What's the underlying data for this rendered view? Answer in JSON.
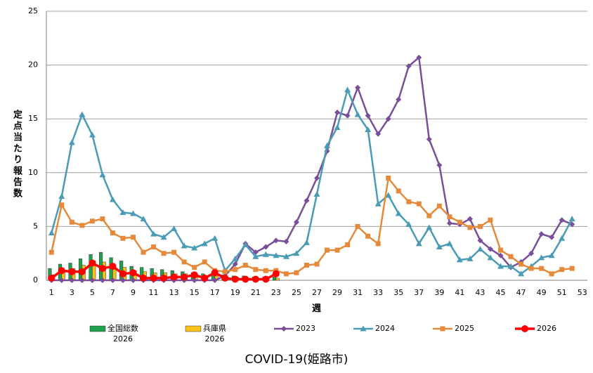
{
  "chart_data": {
    "type": "combo",
    "title": "COVID-19(姫路市)",
    "y_label": "定点当たり報告数",
    "x_label": "週",
    "categories": [
      "1",
      null,
      "3",
      null,
      "5",
      null,
      "7",
      null,
      "9",
      null,
      "11",
      null,
      "13",
      null,
      "15",
      null,
      "17",
      null,
      "19",
      null,
      "21",
      null,
      "23",
      null,
      "25",
      null,
      "27",
      null,
      "29",
      null,
      "31",
      null,
      "33",
      null,
      "35",
      null,
      "37",
      null,
      "39",
      null,
      "41",
      null,
      "43",
      null,
      "45",
      null,
      "47",
      null,
      "49",
      null,
      "51",
      null,
      "53"
    ],
    "ylim": [
      0,
      25
    ],
    "yticks": [
      0,
      5,
      10,
      15,
      20,
      25
    ],
    "grid": true,
    "legend": "bottom",
    "series": [
      {
        "name": "全国総数\n2026",
        "type": "bar",
        "color": "#1ea04c",
        "values": [
          1.1,
          1.5,
          1.6,
          2.0,
          2.4,
          2.6,
          2.1,
          1.8,
          1.3,
          1.2,
          1.1,
          1.0,
          0.9,
          0.8,
          0.7,
          0.6,
          0.6,
          0.5,
          0.4,
          0.4,
          0.3,
          0.3,
          0.3,
          null,
          null,
          null,
          null,
          null,
          null,
          null,
          null,
          null,
          null,
          null,
          null,
          null,
          null,
          null,
          null,
          null,
          null,
          null,
          null,
          null,
          null,
          null,
          null,
          null,
          null,
          null,
          null,
          null,
          null
        ]
      },
      {
        "name": "兵庫県\n2026",
        "type": "bar",
        "color": "#f7c21a",
        "values": [
          0.5,
          0.8,
          1.1,
          1.4,
          1.8,
          1.7,
          1.4,
          1.2,
          0.9,
          0.8,
          0.7,
          0.7,
          0.6,
          0.6,
          0.5,
          0.4,
          0.4,
          0.3,
          0.3,
          0.2,
          0.2,
          0.2,
          0.2,
          null,
          null,
          null,
          null,
          null,
          null,
          null,
          null,
          null,
          null,
          null,
          null,
          null,
          null,
          null,
          null,
          null,
          null,
          null,
          null,
          null,
          null,
          null,
          null,
          null,
          null,
          null,
          null,
          null,
          null
        ]
      },
      {
        "name": "2023",
        "type": "line",
        "marker": "diamond",
        "color": "#7a4e98",
        "values": [
          0,
          0,
          0,
          0,
          0,
          0,
          0,
          0,
          0,
          0,
          0,
          0,
          0,
          0,
          0,
          0,
          0,
          0.4,
          1.5,
          3.4,
          2.6,
          3.1,
          3.7,
          3.6,
          5.4,
          7.4,
          9.5,
          12,
          15.6,
          15.3,
          17.9,
          15.3,
          13.6,
          15,
          16.8,
          19.9,
          20.7,
          13.1,
          10.7,
          5.3,
          5.2,
          5.7,
          3.7,
          2.9,
          2.3,
          1.2,
          1.7,
          2.5,
          4.3,
          4.0,
          5.6,
          5.2,
          null
        ]
      },
      {
        "name": "2024",
        "type": "line",
        "marker": "triangle",
        "color": "#4a9bb6",
        "values": [
          4.4,
          7.8,
          12.8,
          15.4,
          13.5,
          9.8,
          7.5,
          6.3,
          6.2,
          5.7,
          4.3,
          4.0,
          4.8,
          3.2,
          3.0,
          3.4,
          3.9,
          0.9,
          2.0,
          3.3,
          2.2,
          2.4,
          2.3,
          2.2,
          2.5,
          3.5,
          8.0,
          12.5,
          14.2,
          17.7,
          15.4,
          14.0,
          7.1,
          7.9,
          6.2,
          5.2,
          3.4,
          4.9,
          3.1,
          3.4,
          1.9,
          2.0,
          2.9,
          2.1,
          1.3,
          1.3,
          0.6,
          1.3,
          2.1,
          2.3,
          3.9,
          5.7,
          null
        ]
      },
      {
        "name": "2025",
        "type": "line",
        "marker": "square",
        "color": "#e58a3a",
        "values": [
          2.6,
          7.0,
          5.4,
          5.1,
          5.5,
          5.7,
          4.4,
          3.9,
          4.0,
          2.6,
          3.1,
          2.5,
          2.6,
          1.7,
          1.2,
          1.7,
          0.9,
          0.8,
          1.0,
          1.4,
          1.0,
          0.9,
          0.9,
          0.6,
          0.7,
          1.4,
          1.5,
          2.8,
          2.8,
          3.3,
          5.0,
          4.1,
          3.4,
          9.5,
          8.3,
          7.3,
          7.1,
          6.0,
          6.9,
          5.9,
          5.4,
          4.9,
          5.0,
          5.6,
          2.8,
          2.2,
          1.5,
          1.1,
          1.1,
          0.6,
          1.0,
          1.1,
          null
        ]
      },
      {
        "name": "2026",
        "type": "line",
        "marker": "circle",
        "color": "#ff0000",
        "values": [
          0.2,
          0.9,
          0.8,
          0.8,
          1.6,
          1.1,
          1.3,
          0.6,
          0.7,
          0.2,
          0.2,
          0.2,
          0.3,
          0.3,
          0.5,
          0.2,
          0.7,
          0.2,
          0.1,
          0.1,
          0.1,
          0.1,
          0.6,
          null,
          null,
          null,
          null,
          null,
          null,
          null,
          null,
          null,
          null,
          null,
          null,
          null,
          null,
          null,
          null,
          null,
          null,
          null,
          null,
          null,
          null,
          null,
          null,
          null,
          null,
          null,
          null,
          null,
          null
        ]
      }
    ]
  }
}
